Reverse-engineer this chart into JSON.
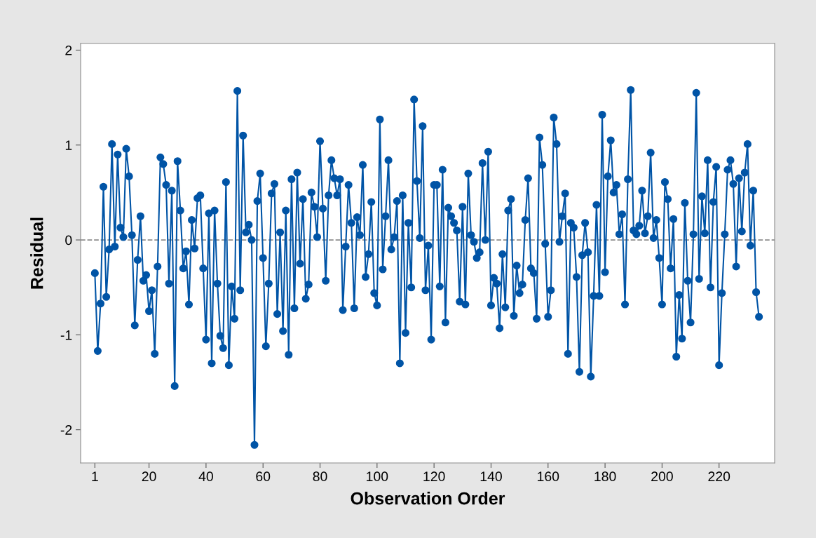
{
  "chart_data": {
    "type": "line",
    "xlabel": "Observation Order",
    "ylabel": "Residual",
    "x": [
      1,
      2,
      3,
      4,
      5,
      6,
      7,
      8,
      9,
      10,
      11,
      12,
      13,
      14,
      15,
      16,
      17,
      18,
      19,
      20,
      21,
      22,
      23,
      24,
      25,
      26,
      27,
      28,
      29,
      30,
      31,
      32,
      33,
      34,
      35,
      36,
      37,
      38,
      39,
      40,
      41,
      42,
      43,
      44,
      45,
      46,
      47,
      48,
      49,
      50,
      51,
      52,
      53,
      54,
      55,
      56,
      57,
      58,
      59,
      60,
      61,
      62,
      63,
      64,
      65,
      66,
      67,
      68,
      69,
      70,
      71,
      72,
      73,
      74,
      75,
      76,
      77,
      78,
      79,
      80,
      81,
      82,
      83,
      84,
      85,
      86,
      87,
      88,
      89,
      90,
      91,
      92,
      93,
      94,
      95,
      96,
      97,
      98,
      99,
      100,
      101,
      102,
      103,
      104,
      105,
      106,
      107,
      108,
      109,
      110,
      111,
      112,
      113,
      114,
      115,
      116,
      117,
      118,
      119,
      120,
      121,
      122,
      123,
      124,
      125,
      126,
      127,
      128,
      129,
      130,
      131,
      132,
      133,
      134,
      135,
      136,
      137,
      138,
      139,
      140,
      141,
      142,
      143,
      144,
      145,
      146,
      147,
      148,
      149,
      150,
      151,
      152,
      153,
      154,
      155,
      156,
      157,
      158,
      159,
      160,
      161,
      162,
      163,
      164,
      165,
      166,
      167,
      168,
      169,
      170,
      171,
      172,
      173,
      174,
      175,
      176,
      177,
      178,
      179,
      180,
      181,
      182,
      183,
      184,
      185,
      186,
      187,
      188,
      189,
      190,
      191,
      192,
      193,
      194,
      195,
      196,
      197,
      198,
      199,
      200,
      201,
      202,
      203,
      204,
      205,
      206,
      207,
      208,
      209,
      210,
      211,
      212,
      213,
      214,
      215,
      216,
      217,
      218,
      219,
      220,
      221,
      222,
      223,
      224,
      225,
      226,
      227,
      228,
      229,
      230,
      231,
      232,
      233,
      234
    ],
    "series": [
      {
        "color": "#0054a6",
        "values": [
          -0.35,
          -1.17,
          -0.67,
          0.56,
          -0.6,
          -0.1,
          1.01,
          -0.07,
          0.9,
          0.13,
          0.03,
          0.96,
          0.67,
          0.05,
          -0.9,
          -0.21,
          0.25,
          -0.43,
          -0.37,
          -0.75,
          -0.53,
          -1.2,
          -0.28,
          0.87,
          0.8,
          0.58,
          -0.46,
          0.52,
          -1.54,
          0.83,
          0.31,
          -0.3,
          -0.12,
          -0.68,
          0.21,
          -0.09,
          0.44,
          0.47,
          -0.3,
          -1.05,
          0.28,
          -1.3,
          0.31,
          -0.46,
          -1.01,
          -1.14,
          0.61,
          -1.32,
          -0.49,
          -0.83,
          1.57,
          -0.53,
          1.1,
          0.08,
          0.16,
          0.0,
          -2.16,
          0.41,
          0.7,
          -0.19,
          -1.12,
          -0.46,
          0.49,
          0.59,
          -0.78,
          0.08,
          -0.96,
          0.31,
          -1.21,
          0.64,
          -0.72,
          0.71,
          -0.25,
          0.43,
          -0.62,
          -0.47,
          0.5,
          0.35,
          0.03,
          1.04,
          0.33,
          -0.43,
          0.47,
          0.84,
          0.65,
          0.47,
          0.64,
          -0.74,
          -0.07,
          0.58,
          0.18,
          -0.72,
          0.24,
          0.05,
          0.79,
          -0.39,
          -0.15,
          0.4,
          -0.56,
          -0.69,
          1.27,
          -0.31,
          0.25,
          0.84,
          -0.1,
          0.03,
          0.41,
          -1.3,
          0.47,
          -0.98,
          0.18,
          -0.5,
          1.48,
          0.62,
          0.02,
          1.2,
          -0.53,
          -0.06,
          -1.05,
          0.58,
          0.58,
          -0.49,
          0.74,
          -0.87,
          0.34,
          0.25,
          0.18,
          0.1,
          -0.65,
          0.35,
          -0.68,
          0.7,
          0.05,
          -0.02,
          -0.19,
          -0.13,
          0.81,
          0.0,
          0.93,
          -0.69,
          -0.4,
          -0.46,
          -0.93,
          -0.15,
          -0.71,
          0.31,
          0.43,
          -0.8,
          -0.27,
          -0.56,
          -0.47,
          0.21,
          0.65,
          -0.3,
          -0.35,
          -0.83,
          1.08,
          0.79,
          -0.04,
          -0.81,
          -0.53,
          1.29,
          1.01,
          -0.02,
          0.25,
          0.49,
          -1.2,
          0.18,
          0.13,
          -0.39,
          -1.39,
          -0.16,
          0.18,
          -0.13,
          -1.44,
          -0.59,
          0.37,
          -0.59,
          1.32,
          -0.34,
          0.67,
          1.05,
          0.5,
          0.58,
          0.06,
          0.27,
          -0.68,
          0.64,
          1.58,
          0.1,
          0.06,
          0.15,
          0.52,
          0.07,
          0.25,
          0.92,
          0.02,
          0.21,
          -0.19,
          -0.68,
          0.61,
          0.43,
          -0.3,
          0.22,
          -1.23,
          -0.58,
          -1.04,
          0.39,
          -0.43,
          -0.87,
          0.06,
          1.55,
          -0.41,
          0.46,
          0.07,
          0.84,
          -0.5,
          0.4,
          0.77,
          -1.32,
          -0.56,
          0.06,
          0.74,
          0.84,
          0.59,
          -0.28,
          0.65,
          0.09,
          0.71,
          1.01,
          -0.06,
          0.52,
          -0.55,
          -0.81
        ]
      }
    ],
    "xlim": [
      -4,
      239.5
    ],
    "xticks": [
      1,
      20,
      40,
      60,
      80,
      100,
      120,
      140,
      160,
      180,
      200,
      220
    ],
    "ylim": [
      -2.35,
      2.07
    ],
    "yticks": [
      -2,
      -1,
      0,
      1,
      2
    ],
    "ref_lines": [
      {
        "axis": "y",
        "value": 0,
        "color": "#8c8c8c",
        "line_style": "dashed"
      }
    ],
    "marker": "circle",
    "line_style": "solid",
    "grid": false
  }
}
